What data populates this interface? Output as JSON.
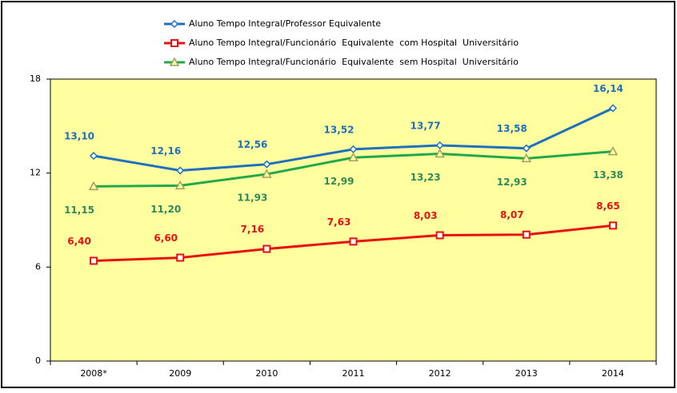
{
  "chart_data": {
    "type": "line",
    "categories": [
      "2008*",
      "2009",
      "2010",
      "2011",
      "2012",
      "2013",
      "2014"
    ],
    "series": [
      {
        "name": "Aluno Tempo Integral/Professor Equivalente",
        "color": "#1f6fbf",
        "marker": "diamond",
        "values": [
          13.1,
          12.16,
          12.56,
          13.52,
          13.77,
          13.58,
          16.14
        ],
        "value_labels": [
          "13,10",
          "12,16",
          "12,56",
          "13,52",
          "13,77",
          "13,58",
          "16,14"
        ]
      },
      {
        "name": "Aluno Tempo Integral/Funcionário  Equivalente  com Hospital  Universitário",
        "color": "#e81010",
        "marker": "square",
        "values": [
          6.4,
          6.6,
          7.16,
          7.63,
          8.03,
          8.07,
          8.65
        ],
        "value_labels": [
          "6,40",
          "6,60",
          "7,16",
          "7,63",
          "8,03",
          "8,07",
          "8,65"
        ]
      },
      {
        "name": "Aluno Tempo Integral/Funcionário  Equivalente  sem Hospital  Universitário",
        "color": "#22a84a",
        "label_color": "#2e8b57",
        "marker": "triangle",
        "values": [
          11.15,
          11.2,
          11.93,
          12.99,
          13.23,
          12.93,
          13.38
        ],
        "value_labels": [
          "11,15",
          "11,20",
          "11,93",
          "12,99",
          "13,23",
          "12,93",
          "13,38"
        ]
      }
    ],
    "ylim": [
      0,
      18
    ],
    "yticks": [
      0,
      6,
      12,
      18
    ],
    "grid": false,
    "legend": "top",
    "plot_background": "#ffff9f"
  }
}
